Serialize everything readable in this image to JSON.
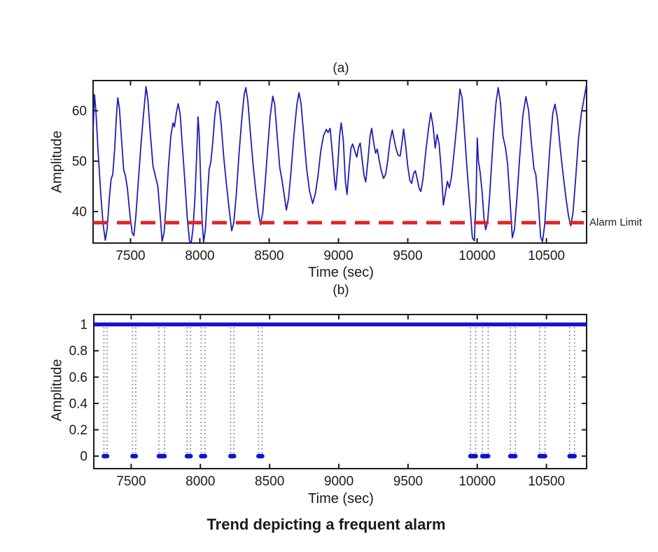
{
  "figure": {
    "caption": "Trend depicting a frequent alarm",
    "alarm_label": "Alarm Limit",
    "colors": {
      "signal": "#1e1eb4",
      "binary_line": "#1212cc",
      "event_dotted": "#6b6b9f",
      "alarm_line": "#e02525",
      "axis": "#1a1a1a",
      "background": "#ffffff"
    }
  },
  "chart_data": [
    {
      "type": "line",
      "title": "(a)",
      "xlabel": "Time (sec)",
      "ylabel": "Amplitude",
      "xlim": [
        7230,
        10790
      ],
      "ylim": [
        33.75,
        66
      ],
      "xticks": [
        7500,
        8000,
        8500,
        9000,
        9500,
        10000,
        10500
      ],
      "xtick_labels": [
        "7500",
        "8000",
        "8500",
        "9000",
        "9500",
        "10000",
        "10500"
      ],
      "yticks": [
        40,
        50,
        60
      ],
      "ytick_labels": [
        "40",
        "50",
        "60"
      ],
      "grid": false,
      "alarm_limit": 37.8,
      "series": [
        {
          "name": "amplitude-signal",
          "points": [
            [
              7230,
              56
            ],
            [
              7240,
              63.2
            ],
            [
              7250,
              60
            ],
            [
              7266,
              52
            ],
            [
              7284,
              44
            ],
            [
              7302,
              37.5
            ],
            [
              7318,
              34.3
            ],
            [
              7332,
              36.8
            ],
            [
              7348,
              43
            ],
            [
              7360,
              46.4
            ],
            [
              7372,
              47.4
            ],
            [
              7386,
              52.5
            ],
            [
              7398,
              59
            ],
            [
              7408,
              62.6
            ],
            [
              7420,
              60.5
            ],
            [
              7436,
              54
            ],
            [
              7450,
              48.4
            ],
            [
              7464,
              47
            ],
            [
              7478,
              44.5
            ],
            [
              7495,
              39.5
            ],
            [
              7512,
              35.8
            ],
            [
              7524,
              35.2
            ],
            [
              7538,
              39
            ],
            [
              7556,
              46
            ],
            [
              7576,
              53.5
            ],
            [
              7596,
              60
            ],
            [
              7612,
              64.8
            ],
            [
              7626,
              62
            ],
            [
              7644,
              55
            ],
            [
              7662,
              49
            ],
            [
              7680,
              47
            ],
            [
              7697,
              45
            ],
            [
              7713,
              39.5
            ],
            [
              7728,
              34.1
            ],
            [
              7742,
              35.8
            ],
            [
              7757,
              41.5
            ],
            [
              7774,
              49
            ],
            [
              7791,
              55
            ],
            [
              7806,
              57.6
            ],
            [
              7817,
              56.8
            ],
            [
              7831,
              59.6
            ],
            [
              7844,
              61.4
            ],
            [
              7858,
              59.3
            ],
            [
              7874,
              53
            ],
            [
              7892,
              46
            ],
            [
              7909,
              38.8
            ],
            [
              7926,
              34.1
            ],
            [
              7938,
              33.8
            ],
            [
              7951,
              36.8
            ],
            [
              7964,
              42.5
            ],
            [
              7977,
              51
            ],
            [
              7987,
              58.8
            ],
            [
              7995,
              55.5
            ],
            [
              8005,
              47
            ],
            [
              8015,
              38.8
            ],
            [
              8027,
              33.9
            ],
            [
              8040,
              36.4
            ],
            [
              8054,
              43
            ],
            [
              8067,
              48.4
            ],
            [
              8080,
              49.9
            ],
            [
              8094,
              54
            ],
            [
              8108,
              59
            ],
            [
              8123,
              61.9
            ],
            [
              8138,
              61.4
            ],
            [
              8154,
              57.3
            ],
            [
              8172,
              51
            ],
            [
              8192,
              45.4
            ],
            [
              8212,
              40.3
            ],
            [
              8230,
              36.2
            ],
            [
              8245,
              37.8
            ],
            [
              8263,
              43.5
            ],
            [
              8283,
              51.5
            ],
            [
              8303,
              58.5
            ],
            [
              8320,
              63.3
            ],
            [
              8332,
              64.6
            ],
            [
              8346,
              62
            ],
            [
              8364,
              55.8
            ],
            [
              8384,
              49.4
            ],
            [
              8404,
              44
            ],
            [
              8424,
              39.4
            ],
            [
              8438,
              37.4
            ],
            [
              8454,
              39.8
            ],
            [
              8470,
              45.3
            ],
            [
              8488,
              52
            ],
            [
              8507,
              58.8
            ],
            [
              8526,
              62.9
            ],
            [
              8540,
              61.3
            ],
            [
              8558,
              55
            ],
            [
              8576,
              48.8
            ],
            [
              8592,
              46.4
            ],
            [
              8606,
              43.8
            ],
            [
              8624,
              40.3
            ],
            [
              8640,
              42.6
            ],
            [
              8658,
              48
            ],
            [
              8678,
              55
            ],
            [
              8700,
              61.2
            ],
            [
              8715,
              63.6
            ],
            [
              8730,
              61.4
            ],
            [
              8750,
              55
            ],
            [
              8770,
              48.6
            ],
            [
              8792,
              44
            ],
            [
              8814,
              41.6
            ],
            [
              8834,
              43.6
            ],
            [
              8852,
              47
            ],
            [
              8872,
              52
            ],
            [
              8892,
              55
            ],
            [
              8912,
              56.3
            ],
            [
              8925,
              55.7
            ],
            [
              8940,
              56.5
            ],
            [
              8958,
              51
            ],
            [
              8972,
              46
            ],
            [
              8980,
              44.3
            ],
            [
              8995,
              49
            ],
            [
              9008,
              55
            ],
            [
              9020,
              57.6
            ],
            [
              9035,
              54
            ],
            [
              9050,
              46
            ],
            [
              9062,
              43.4
            ],
            [
              9075,
              48
            ],
            [
              9090,
              52.5
            ],
            [
              9102,
              53.4
            ],
            [
              9118,
              52
            ],
            [
              9132,
              50.8
            ],
            [
              9145,
              52.8
            ],
            [
              9157,
              53.6
            ],
            [
              9172,
              50
            ],
            [
              9185,
              47
            ],
            [
              9197,
              45.9
            ],
            [
              9212,
              50
            ],
            [
              9228,
              55
            ],
            [
              9240,
              56.5
            ],
            [
              9255,
              53.5
            ],
            [
              9268,
              51.6
            ],
            [
              9280,
              52.4
            ],
            [
              9295,
              50
            ],
            [
              9310,
              48
            ],
            [
              9325,
              46.6
            ],
            [
              9340,
              47.4
            ],
            [
              9355,
              50
            ],
            [
              9372,
              54
            ],
            [
              9388,
              56.2
            ],
            [
              9400,
              54.5
            ],
            [
              9415,
              52.5
            ],
            [
              9430,
              51.2
            ],
            [
              9445,
              51
            ],
            [
              9458,
              53.5
            ],
            [
              9470,
              56.4
            ],
            [
              9485,
              53
            ],
            [
              9500,
              49
            ],
            [
              9515,
              46.2
            ],
            [
              9528,
              45.6
            ],
            [
              9542,
              47.6
            ],
            [
              9555,
              48.1
            ],
            [
              9570,
              46.2
            ],
            [
              9582,
              44.6
            ],
            [
              9594,
              44
            ],
            [
              9610,
              46.5
            ],
            [
              9630,
              52
            ],
            [
              9650,
              56.5
            ],
            [
              9666,
              59.6
            ],
            [
              9682,
              57
            ],
            [
              9698,
              52.6
            ],
            [
              9712,
              55.3
            ],
            [
              9726,
              53.4
            ],
            [
              9742,
              48
            ],
            [
              9757,
              41.3
            ],
            [
              9772,
              43.8
            ],
            [
              9786,
              46
            ],
            [
              9800,
              44.7
            ],
            [
              9815,
              46.8
            ],
            [
              9835,
              52
            ],
            [
              9858,
              58.5
            ],
            [
              9876,
              64.3
            ],
            [
              9892,
              62.5
            ],
            [
              9910,
              55.5
            ],
            [
              9930,
              47.5
            ],
            [
              9950,
              40.5
            ],
            [
              9966,
              34.8
            ],
            [
              9980,
              34.2
            ],
            [
              9992,
              42
            ],
            [
              10001,
              54.6
            ],
            [
              10010,
              50
            ],
            [
              10022,
              47.8
            ],
            [
              10036,
              44
            ],
            [
              10050,
              38.5
            ],
            [
              10062,
              36.4
            ],
            [
              10076,
              38
            ],
            [
              10090,
              43
            ],
            [
              10104,
              49
            ],
            [
              10120,
              56
            ],
            [
              10136,
              61.5
            ],
            [
              10152,
              64.6
            ],
            [
              10168,
              61.8
            ],
            [
              10186,
              55
            ],
            [
              10205,
              52.6
            ],
            [
              10220,
              49.5
            ],
            [
              10238,
              42
            ],
            [
              10254,
              34.8
            ],
            [
              10270,
              36.5
            ],
            [
              10288,
              43
            ],
            [
              10308,
              51
            ],
            [
              10330,
              59
            ],
            [
              10352,
              62.8
            ],
            [
              10372,
              60
            ],
            [
              10392,
              53.5
            ],
            [
              10410,
              48.6
            ],
            [
              10424,
              47.3
            ],
            [
              10440,
              42.5
            ],
            [
              10458,
              35
            ],
            [
              10472,
              34
            ],
            [
              10488,
              37.5
            ],
            [
              10506,
              45
            ],
            [
              10526,
              53
            ],
            [
              10546,
              59.5
            ],
            [
              10562,
              61.3
            ],
            [
              10580,
              58.5
            ],
            [
              10600,
              52.5
            ],
            [
              10620,
              47.5
            ],
            [
              10642,
              42.5
            ],
            [
              10660,
              39
            ],
            [
              10676,
              37.2
            ],
            [
              10692,
              39.8
            ],
            [
              10712,
              47
            ],
            [
              10732,
              54.5
            ],
            [
              10752,
              59.5
            ],
            [
              10772,
              62.5
            ],
            [
              10790,
              65.3
            ]
          ]
        }
      ]
    },
    {
      "type": "line",
      "title": "(b)",
      "xlabel": "Time (sec)",
      "ylabel": "Amplitude",
      "xlim": [
        7230,
        10790
      ],
      "ylim": [
        -0.095,
        1.075
      ],
      "xticks": [
        7500,
        8000,
        8500,
        9000,
        9500,
        10000,
        10500
      ],
      "xtick_labels": [
        "7500",
        "8000",
        "8500",
        "9000",
        "9500",
        "10000",
        "10500"
      ],
      "yticks": [
        0,
        0.2,
        0.4,
        0.6,
        0.8,
        1
      ],
      "ytick_labels": [
        "0",
        "0.2",
        "0.4",
        "0.6",
        "0.8",
        "1"
      ],
      "grid": false,
      "baseline_level": 1,
      "event_level": 0,
      "alarm_events": [
        [
          7303,
          7326
        ],
        [
          7510,
          7533
        ],
        [
          7700,
          7741
        ],
        [
          7903,
          7929
        ],
        [
          8006,
          8033
        ],
        [
          8218,
          8243
        ],
        [
          8420,
          8446
        ],
        [
          9951,
          9989
        ],
        [
          10037,
          10079
        ],
        [
          10239,
          10275
        ],
        [
          10451,
          10490
        ],
        [
          10667,
          10703
        ]
      ]
    }
  ]
}
